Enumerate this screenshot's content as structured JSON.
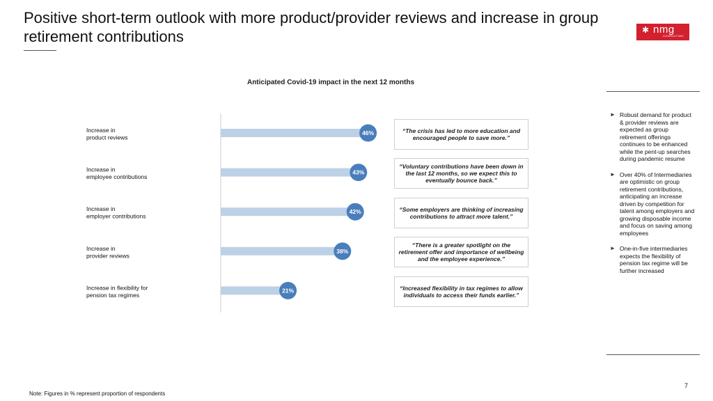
{
  "title": "Positive short-term outlook with more product/provider reviews and increase in group retirement contributions",
  "logo": {
    "text": "nmg",
    "subtext": "CONSULTING"
  },
  "chart_data": {
    "type": "bar",
    "orientation": "horizontal",
    "title": "Anticipated Covid-19 impact in the next 12 months",
    "categories": [
      [
        "Increase in",
        "product reviews"
      ],
      [
        "Increase in",
        "employee contributions"
      ],
      [
        "Increase in",
        "employer contributions"
      ],
      [
        "Increase in",
        "provider reviews"
      ],
      [
        "Increase in flexibility for",
        "pension tax regimes"
      ]
    ],
    "values": [
      46,
      43,
      42,
      38,
      21
    ],
    "data_labels": [
      "46%",
      "43%",
      "42%",
      "38%",
      "21%"
    ],
    "xlim": [
      0,
      100
    ],
    "grid": false,
    "colors": {
      "bar": "#bdd1e6",
      "marker": "#4a7ebb",
      "label": "#ffffff"
    }
  },
  "quotes": [
    "“The crisis has led to more education and encouraged people to save more.”",
    "“Voluntary contributions have been down in the last 12 months, so we expect this to eventually bounce back.”",
    "“Some employers are thinking of increasing contributions to attract more talent.”",
    "“There is a greater spotlight on the retirement offer and importance of wellbeing and the employee experience.”",
    "“Increased flexibility in tax regimes to allow individuals to access their funds earlier.”"
  ],
  "bullets": [
    "Robust demand for product & provider reviews are expected as group retirement offerings continues to be enhanced while the pent-up searches during pandemic resume",
    "Over 40% of Intermediaries are optimistic on group retirement contributions, anticipating an increase driven by competition for talent among employers and growing disposable income and focus on saving among employees",
    "One-in-five intermediaries expects the flexibility of pension tax regime will be further increased"
  ],
  "bullet_icon": "right-triangle-icon",
  "note": "Note: Figures in % represent proportion of respondents",
  "page_number": "7"
}
